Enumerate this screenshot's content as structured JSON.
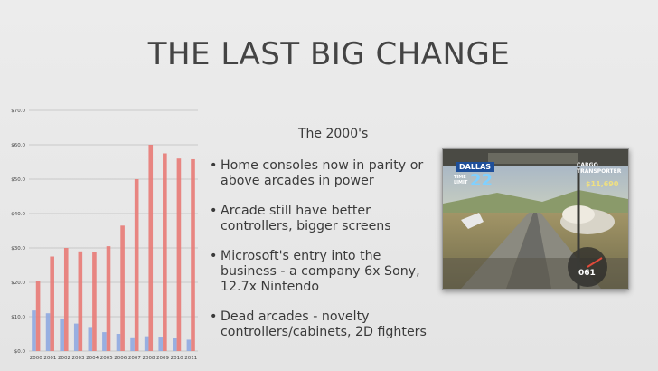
{
  "slide": {
    "title": "THE LAST BIG CHANGE",
    "subtitle": "The 2000's",
    "bullets": [
      "Home consoles now in parity or above arcades in power",
      "Arcade still have better controllers, bigger screens",
      "Microsoft's entry into the business - a company 6x Sony, 12.7x Nintendo",
      "Dead arcades - novelty controllers/cabinets, 2D fighters"
    ],
    "bullet_glyph": "•"
  },
  "screenshot": {
    "hud_city": "DALLAS",
    "hud_time_label": "TIME LIMIT",
    "hud_time": "22",
    "hud_cargo": "CARGO TRANSPORTER",
    "hud_money": "$11,690",
    "hud_speed": "061"
  },
  "colors": {
    "series_red": "#e87a76",
    "series_blue": "#8fa8e0",
    "gridline": "#aaaaaa"
  },
  "chart_data": {
    "type": "bar",
    "categories": [
      "2000",
      "2001",
      "2002",
      "2003",
      "2004",
      "2005",
      "2006",
      "2007",
      "2008",
      "2009",
      "2010",
      "2011"
    ],
    "series": [
      {
        "values": [
          20.5,
          27.5,
          30.0,
          29.0,
          28.8,
          30.5,
          36.5,
          50.0,
          60.0,
          57.5,
          56.0,
          55.8
        ]
      },
      {
        "values": [
          11.8,
          11.0,
          9.5,
          8.0,
          7.0,
          5.5,
          5.0,
          4.0,
          4.3,
          4.2,
          3.8,
          3.3
        ]
      }
    ],
    "yticks": [
      "$0.0",
      "$10.0",
      "$20.0",
      "$30.0",
      "$40.0",
      "$50.0",
      "$60.0",
      "$70.0"
    ],
    "ylim": [
      0,
      70
    ],
    "grid": true
  }
}
